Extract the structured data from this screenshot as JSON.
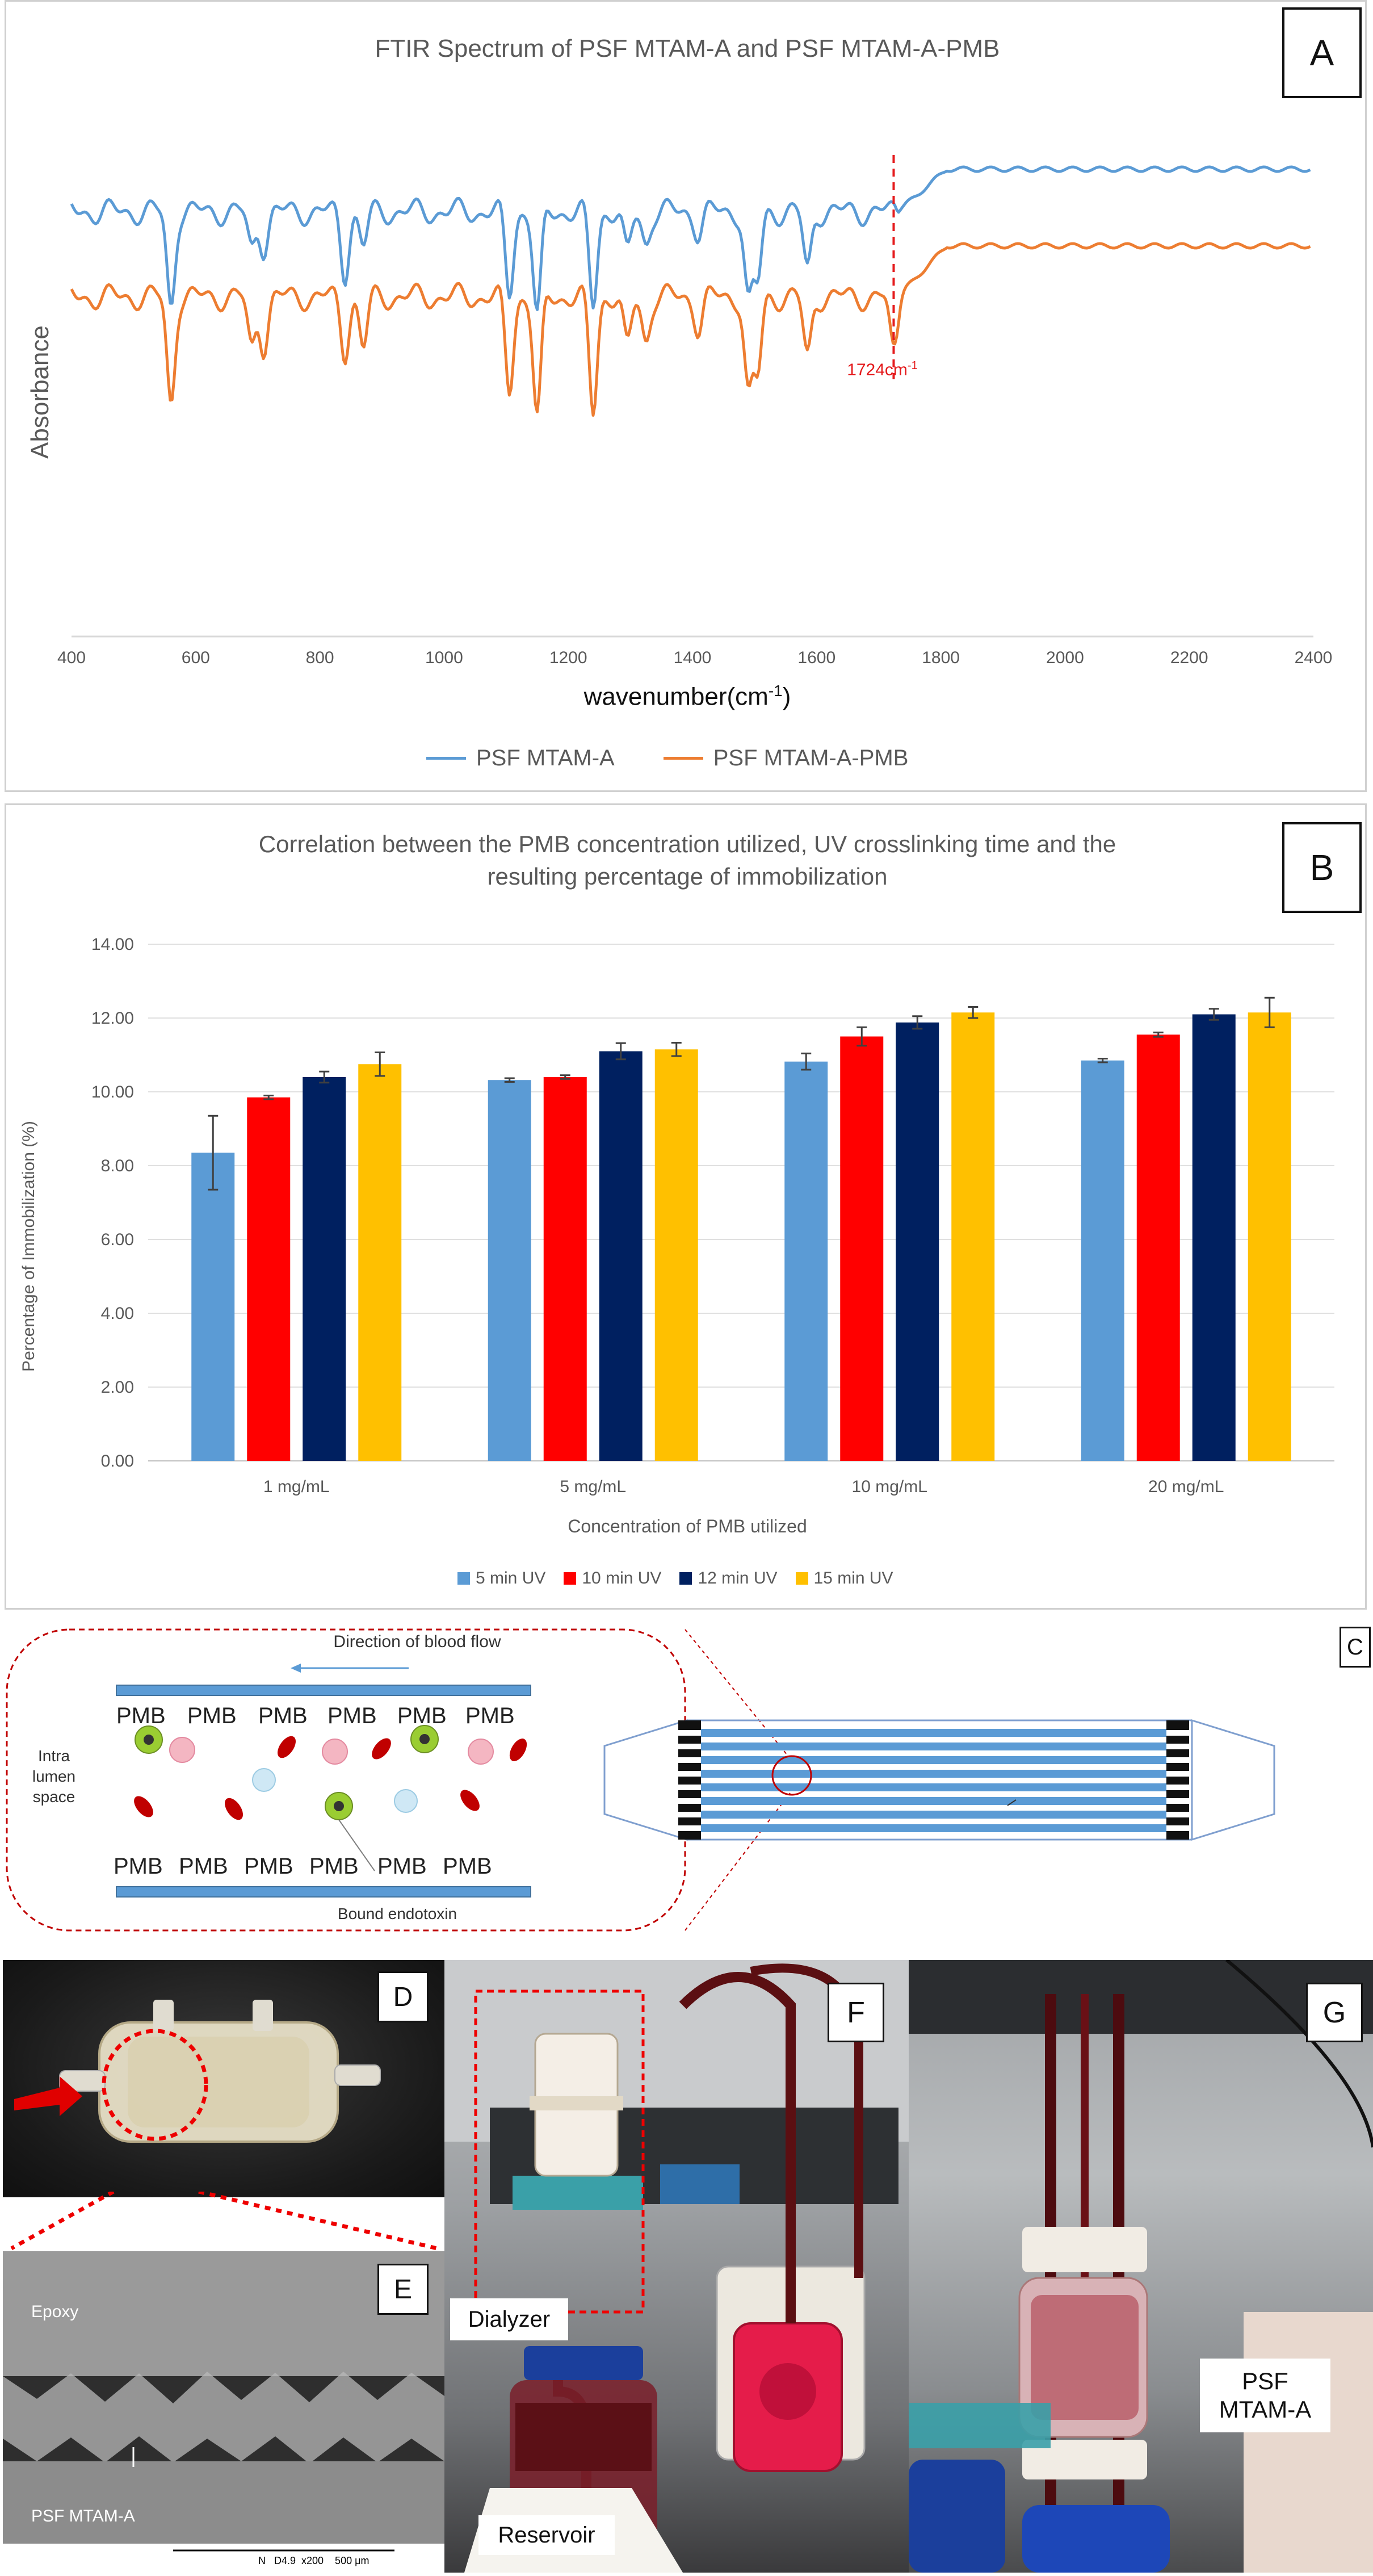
{
  "panel_a": {
    "tag": "A",
    "chart_data": {
      "type": "line",
      "title": "FTIR Spectrum of PSF MTAM-A and PSF MTAM-A-PMB",
      "xlabel": "wavenumber(cm-1)",
      "xlabel_main": "wavenumber(cm",
      "xlabel_sup": "-1",
      "xlabel_end": ")",
      "ylabel": "Absorbance",
      "x_ticks": [
        400,
        600,
        800,
        1000,
        1200,
        1400,
        1600,
        1800,
        2000,
        2200,
        2400
      ],
      "xlim": [
        400,
        2400
      ],
      "annotation": {
        "x": 1724,
        "label": "1724cm",
        "label_sup": "-1"
      },
      "series": [
        {
          "name": "PSF MTAM-A",
          "color": "#5b9bd5"
        },
        {
          "name": "PSF MTAM-A-PMB",
          "color": "#ed7d31"
        }
      ]
    }
  },
  "panel_b": {
    "tag": "B",
    "chart_data": {
      "type": "bar",
      "title_line1": "Correlation between the PMB concentration utilized, UV crosslinking time and the",
      "title_line2": "resulting percentage of immobilization",
      "xlabel": "Concentration of PMB utilized",
      "ylabel": "Percentage of Immobilization (%)",
      "ylim": [
        0,
        14
      ],
      "y_ticks": [
        "0.00",
        "2.00",
        "4.00",
        "6.00",
        "8.00",
        "10.00",
        "12.00",
        "14.00"
      ],
      "categories": [
        "1 mg/mL",
        "5 mg/mL",
        "10 mg/mL",
        "20 mg/mL"
      ],
      "series": [
        {
          "name": "5 min UV",
          "color": "#5b9bd5",
          "values": [
            8.35,
            10.32,
            10.82,
            10.85
          ],
          "errors": [
            1.0,
            0.05,
            0.22,
            0.05
          ]
        },
        {
          "name": "10 min UV",
          "color": "#ff0000",
          "values": [
            9.85,
            10.4,
            11.5,
            11.55
          ],
          "errors": [
            0.05,
            0.05,
            0.25,
            0.06
          ]
        },
        {
          "name": "12 min UV",
          "color": "#002060",
          "values": [
            10.4,
            11.1,
            11.88,
            12.1
          ],
          "errors": [
            0.15,
            0.22,
            0.17,
            0.15
          ]
        },
        {
          "name": "15 min UV",
          "color": "#ffc000",
          "values": [
            10.75,
            11.15,
            12.15,
            12.15
          ],
          "errors": [
            0.32,
            0.18,
            0.15,
            0.4
          ]
        }
      ]
    }
  },
  "panel_c": {
    "tag": "C",
    "flow_label": "Direction of blood flow",
    "intra_lumen_line1": "Intra",
    "intra_lumen_line2": "lumen",
    "intra_lumen_line3": "space",
    "pmb": "PMB",
    "bound_endotoxin": "Bound endotoxin"
  },
  "panel_d": {
    "tag": "D"
  },
  "panel_e": {
    "tag": "E",
    "epoxy": "Epoxy",
    "membrane": "PSF MTAM-A",
    "scalebar_text": "N   D4.9  x200    500 μm"
  },
  "panel_f": {
    "tag": "F",
    "dialyzer": "Dialyzer",
    "reservoir": "Reservoir"
  },
  "panel_g": {
    "tag": "G",
    "label_line1": "PSF",
    "label_line2": "MTAM-A"
  }
}
